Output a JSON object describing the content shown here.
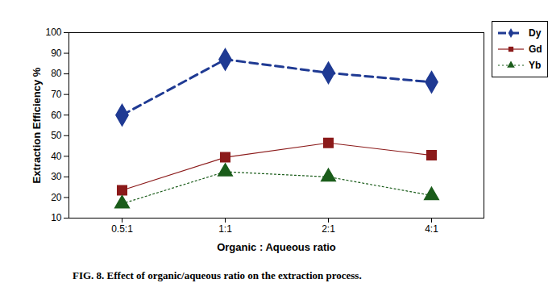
{
  "chart_data": {
    "type": "line",
    "title": "FIG. 8. Effect of organic/aqueous ratio on the extraction process.",
    "x_label": "Organic : Aqueous ratio",
    "y_label": "Extraction Efficiency %",
    "categories": [
      "0.5:1",
      "1:1",
      "2:1",
      "4:1"
    ],
    "series": [
      {
        "name": "Dy",
        "color": "#1f3a93",
        "marker": "diamond",
        "line_style": "dashed",
        "values": [
          60,
          87,
          80.5,
          76
        ]
      },
      {
        "name": "Gd",
        "color": "#8b1a1a",
        "marker": "square",
        "line_style": "solid",
        "values": [
          23.5,
          39.5,
          46.5,
          40.5
        ]
      },
      {
        "name": "Yb",
        "color": "#1a5c1a",
        "marker": "triangle",
        "line_style": "dotted",
        "values": [
          17,
          32.5,
          30,
          21
        ]
      }
    ],
    "ylim": [
      10,
      100
    ],
    "yticks": [
      10,
      20,
      30,
      40,
      50,
      60,
      70,
      80,
      90,
      100
    ],
    "grid": false,
    "legend": "top-right"
  }
}
